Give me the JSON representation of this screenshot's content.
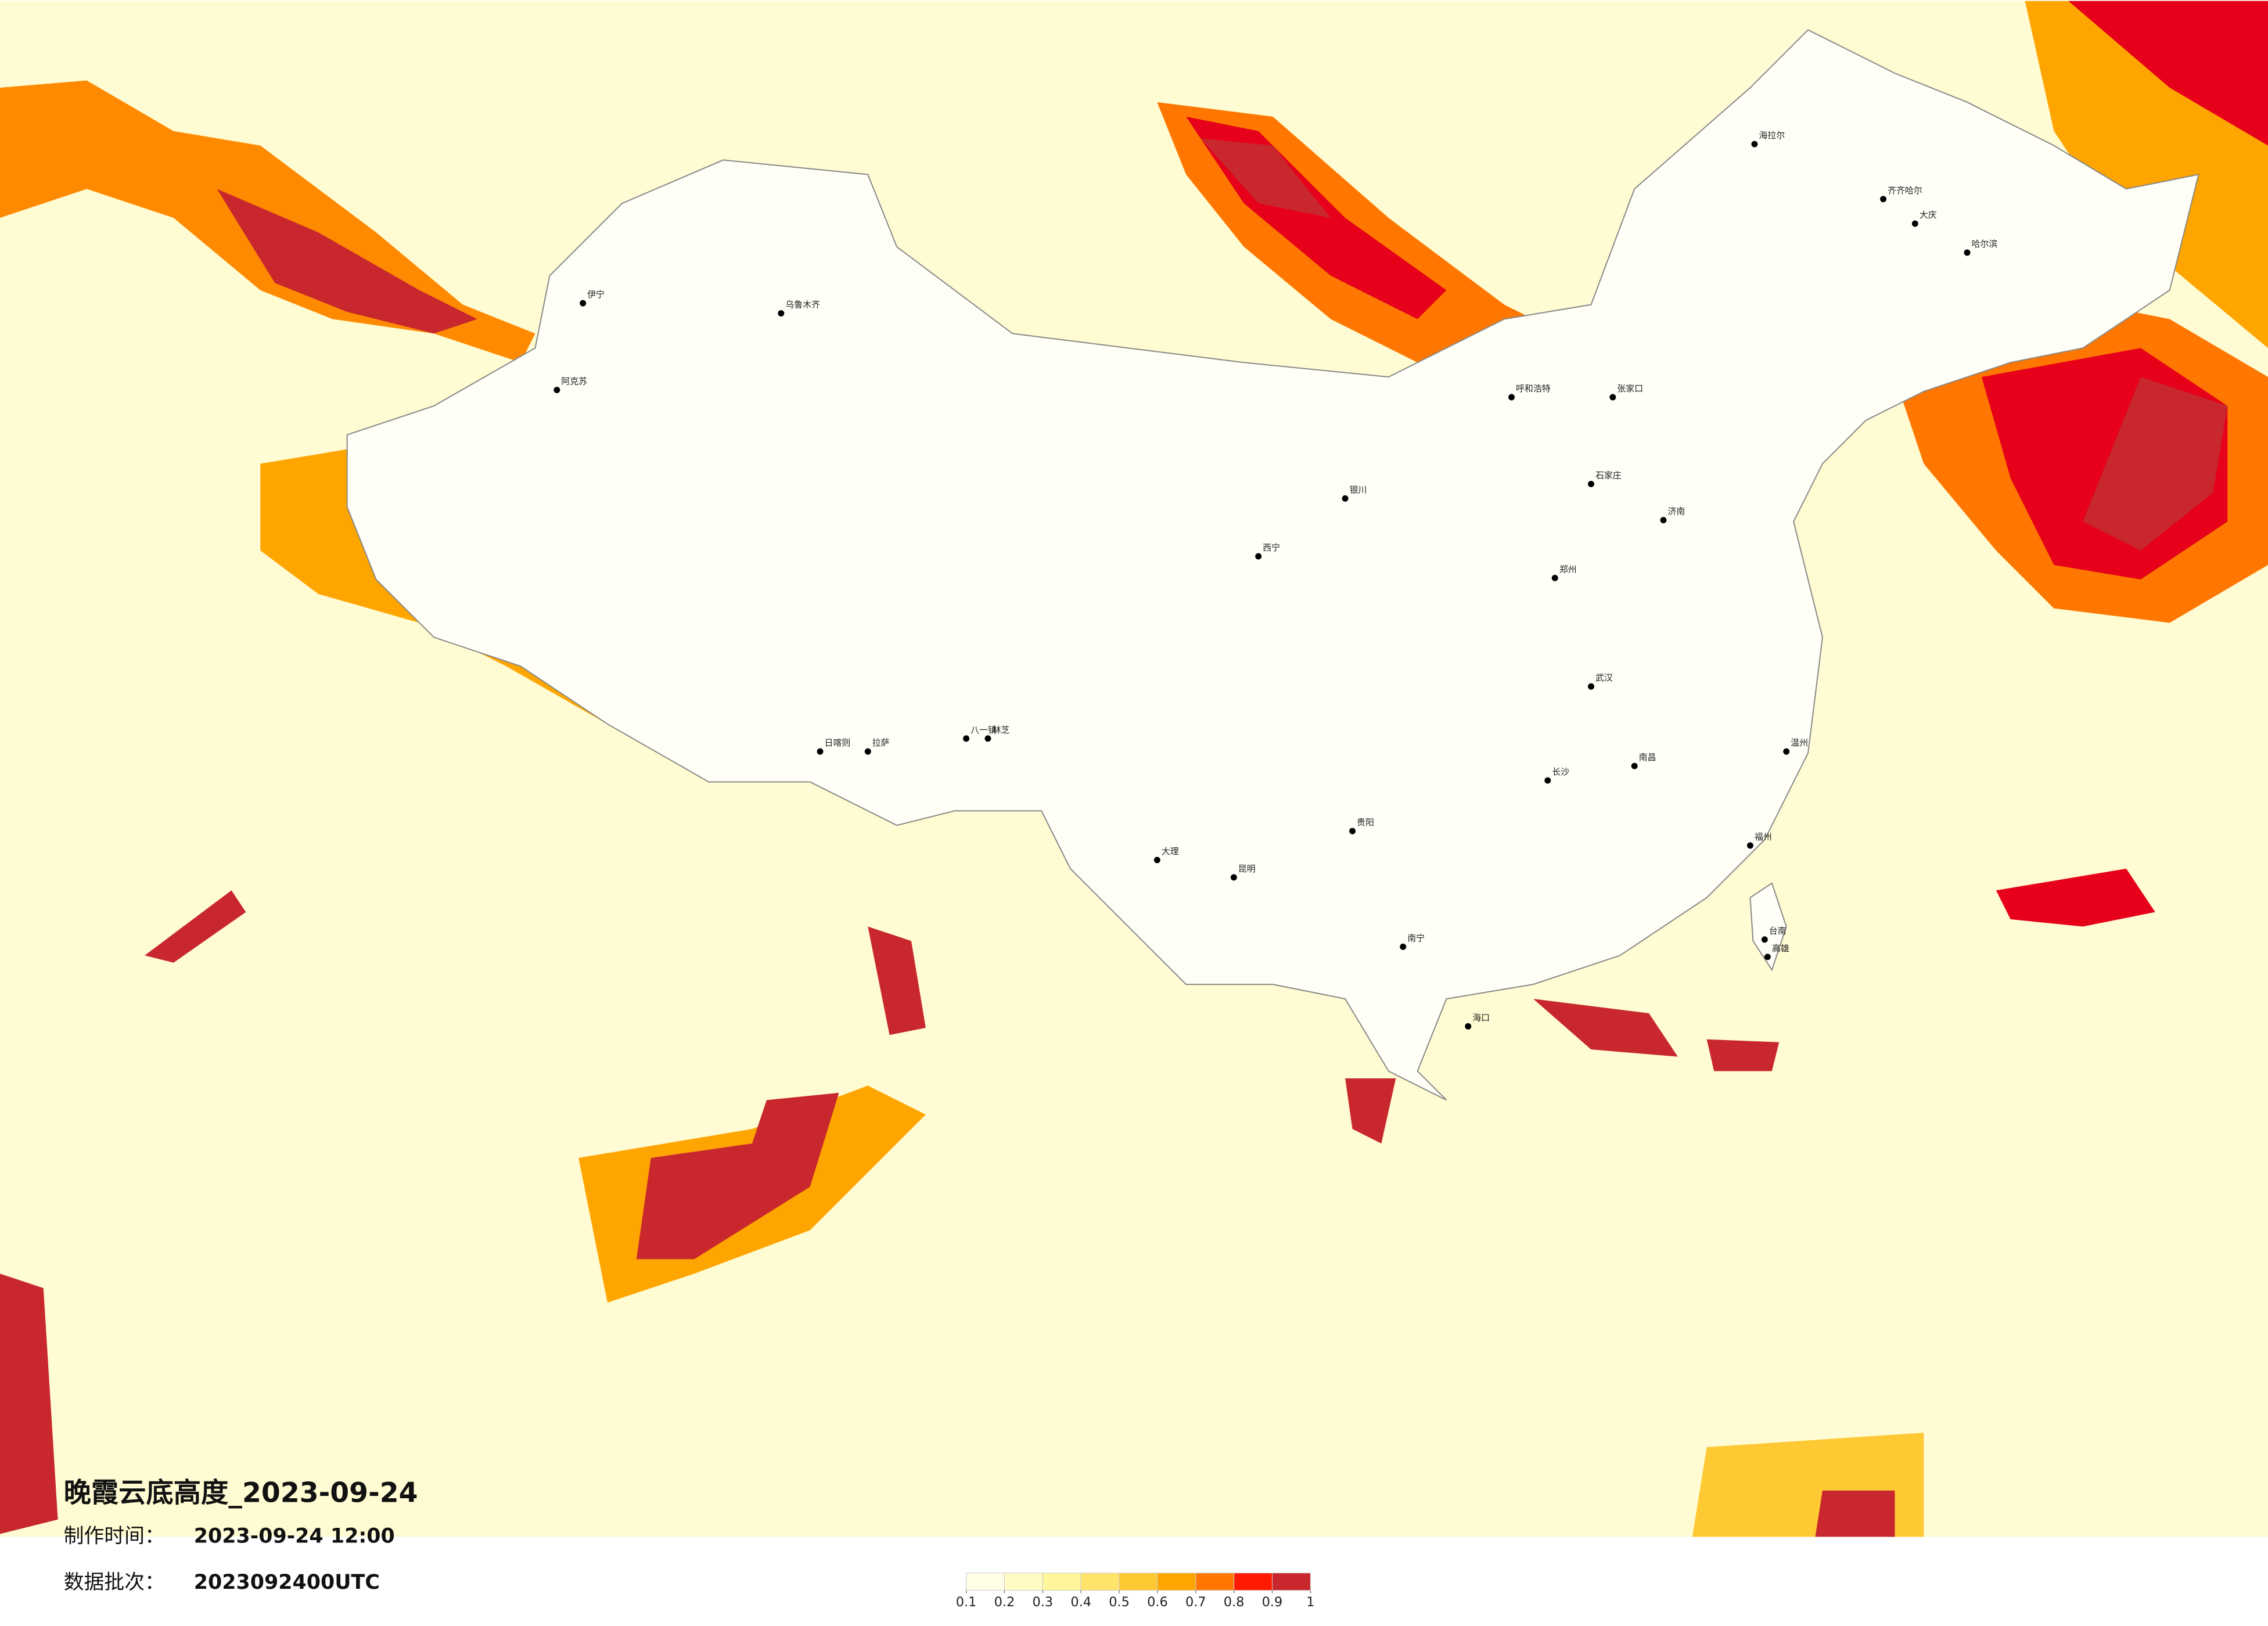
{
  "title": "晚霞云底高度_2023-09-24",
  "made_time": {
    "label": "制作时间：",
    "value": "2023-09-24 12:00"
  },
  "batch": {
    "label": "数据批次：",
    "value": "2023092400UTC"
  },
  "legend": {
    "ticks": [
      0.1,
      0.2,
      0.3,
      0.4,
      0.5,
      0.6,
      0.7,
      0.8,
      0.9,
      1
    ],
    "colors": [
      "#fffde6",
      "#fffac4",
      "#fff59a",
      "#ffe36a",
      "#ffc933",
      "#ffa500",
      "#ff7700",
      "#ff1a00",
      "#c8282d"
    ]
  },
  "cities": [
    "海拉尔",
    "齐齐哈尔",
    "大庆",
    "哈尔滨",
    "伊宁",
    "乌鲁木齐",
    "阿克苏",
    "日喀则",
    "拉萨",
    "八一镇",
    "林芝",
    "大理",
    "昆明",
    "贵阳",
    "南宁",
    "海口",
    "西宁",
    "银川",
    "呼和浩特",
    "张家口",
    "石家庄",
    "济南",
    "郑州",
    "武汉",
    "长沙",
    "南昌",
    "福州",
    "温州",
    "台南",
    "高雄"
  ]
}
